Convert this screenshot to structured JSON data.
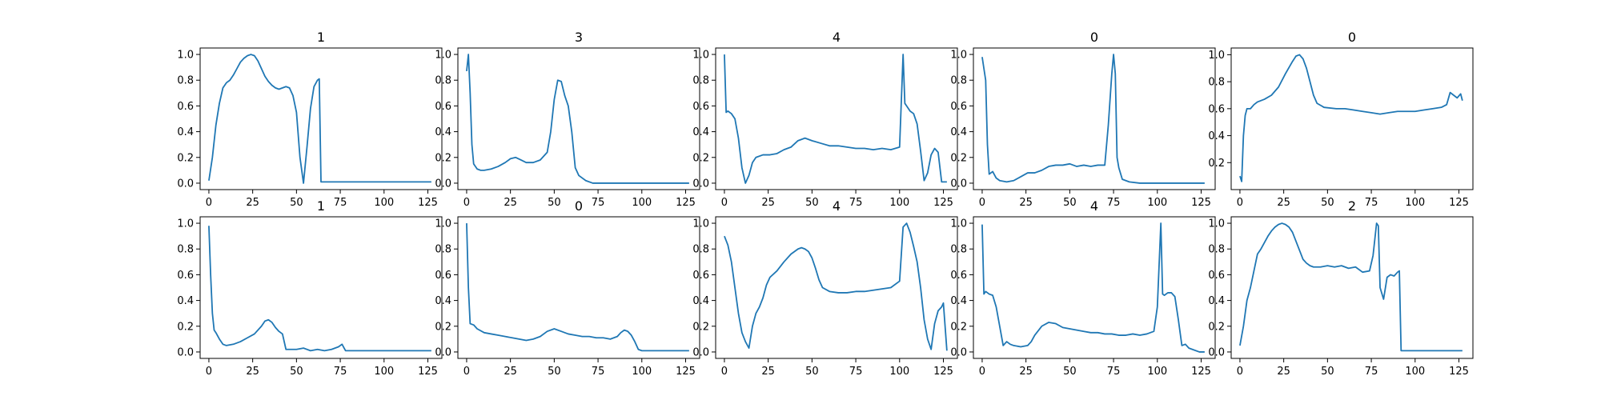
{
  "figure": {
    "line_color": "#1f77b4",
    "background": "#ffffff"
  },
  "chart_data": [
    {
      "type": "line",
      "title": "1",
      "xlabel": "",
      "ylabel": "",
      "xlim": [
        -5,
        133
      ],
      "ylim": [
        -0.05,
        1.05
      ],
      "xticks": [
        "0",
        "25",
        "50",
        "75",
        "100",
        "125"
      ],
      "yticks": [
        "0.0",
        "0.2",
        "0.4",
        "0.6",
        "0.8",
        "1.0"
      ],
      "series": [
        {
          "x": [
            0,
            2,
            4,
            6,
            8,
            10,
            12,
            14,
            16,
            18,
            20,
            22,
            24,
            26,
            28,
            30,
            32,
            34,
            36,
            38,
            40,
            42,
            44,
            46,
            48,
            50,
            52,
            54,
            56,
            58,
            60,
            62,
            63,
            64,
            127
          ],
          "y": [
            0.02,
            0.2,
            0.45,
            0.62,
            0.74,
            0.78,
            0.8,
            0.84,
            0.89,
            0.94,
            0.97,
            0.99,
            1.0,
            0.99,
            0.95,
            0.89,
            0.83,
            0.79,
            0.76,
            0.74,
            0.73,
            0.74,
            0.75,
            0.74,
            0.68,
            0.55,
            0.2,
            0.0,
            0.28,
            0.58,
            0.75,
            0.8,
            0.81,
            0.01,
            0.01
          ]
        }
      ]
    },
    {
      "type": "line",
      "title": "3",
      "xlabel": "",
      "ylabel": "",
      "xlim": [
        -5,
        133
      ],
      "ylim": [
        -0.05,
        1.05
      ],
      "xticks": [
        "0",
        "25",
        "50",
        "75",
        "100",
        "125"
      ],
      "yticks": [
        "0.0",
        "0.2",
        "0.4",
        "0.6",
        "0.8",
        "1.0"
      ],
      "series": [
        {
          "x": [
            0,
            1,
            2,
            3,
            4,
            6,
            8,
            10,
            14,
            18,
            22,
            25,
            28,
            31,
            34,
            38,
            42,
            46,
            48,
            50,
            52,
            54,
            56,
            58,
            60,
            62,
            64,
            68,
            72,
            80,
            127
          ],
          "y": [
            0.87,
            1.0,
            0.7,
            0.3,
            0.15,
            0.11,
            0.1,
            0.1,
            0.11,
            0.13,
            0.16,
            0.19,
            0.2,
            0.18,
            0.16,
            0.16,
            0.18,
            0.24,
            0.4,
            0.65,
            0.8,
            0.79,
            0.68,
            0.6,
            0.4,
            0.12,
            0.06,
            0.02,
            0.0,
            0.0,
            0.0
          ]
        }
      ]
    },
    {
      "type": "line",
      "title": "4",
      "xlabel": "",
      "ylabel": "",
      "xlim": [
        -5,
        133
      ],
      "ylim": [
        -0.05,
        1.05
      ],
      "xticks": [
        "0",
        "25",
        "50",
        "75",
        "100",
        "125"
      ],
      "yticks": [
        "0.0",
        "0.2",
        "0.4",
        "0.6",
        "0.8",
        "1.0"
      ],
      "series": [
        {
          "x": [
            0,
            1,
            2,
            4,
            6,
            8,
            10,
            12,
            14,
            16,
            18,
            22,
            26,
            30,
            34,
            38,
            42,
            46,
            50,
            55,
            60,
            65,
            70,
            75,
            80,
            85,
            90,
            95,
            100,
            102,
            103,
            104,
            106,
            108,
            110,
            112,
            114,
            116,
            118,
            120,
            122,
            124,
            127
          ],
          "y": [
            1.0,
            0.55,
            0.56,
            0.54,
            0.5,
            0.35,
            0.12,
            0.0,
            0.06,
            0.16,
            0.2,
            0.22,
            0.22,
            0.23,
            0.26,
            0.28,
            0.33,
            0.35,
            0.33,
            0.31,
            0.29,
            0.29,
            0.28,
            0.27,
            0.27,
            0.26,
            0.27,
            0.26,
            0.28,
            1.0,
            0.62,
            0.6,
            0.56,
            0.54,
            0.46,
            0.25,
            0.02,
            0.08,
            0.22,
            0.27,
            0.24,
            0.01,
            0.01
          ]
        }
      ]
    },
    {
      "type": "line",
      "title": "0",
      "xlabel": "",
      "ylabel": "",
      "xlim": [
        -5,
        133
      ],
      "ylim": [
        -0.05,
        1.05
      ],
      "xticks": [
        "0",
        "25",
        "50",
        "75",
        "100",
        "125"
      ],
      "yticks": [
        "0.0",
        "0.2",
        "0.4",
        "0.6",
        "0.8",
        "1.0"
      ],
      "series": [
        {
          "x": [
            0,
            2,
            3,
            4,
            6,
            8,
            10,
            14,
            18,
            22,
            26,
            30,
            34,
            38,
            42,
            46,
            50,
            54,
            58,
            62,
            66,
            70,
            72,
            74,
            75,
            76,
            77,
            78,
            80,
            84,
            90,
            127
          ],
          "y": [
            0.98,
            0.8,
            0.3,
            0.07,
            0.09,
            0.04,
            0.02,
            0.01,
            0.02,
            0.05,
            0.08,
            0.08,
            0.1,
            0.13,
            0.14,
            0.14,
            0.15,
            0.13,
            0.14,
            0.13,
            0.14,
            0.14,
            0.45,
            0.85,
            1.0,
            0.85,
            0.2,
            0.12,
            0.03,
            0.01,
            0.0,
            0.0
          ]
        }
      ]
    },
    {
      "type": "line",
      "title": "0",
      "xlabel": "",
      "ylabel": "",
      "xlim": [
        -5,
        133
      ],
      "ylim": [
        0.0,
        1.05
      ],
      "xticks": [
        "0",
        "25",
        "50",
        "75",
        "100",
        "125"
      ],
      "yticks": [
        "0.2",
        "0.4",
        "0.6",
        "0.8",
        "1.0"
      ],
      "series": [
        {
          "x": [
            0,
            1,
            2,
            3,
            4,
            6,
            8,
            10,
            14,
            18,
            22,
            26,
            30,
            32,
            34,
            36,
            38,
            40,
            42,
            44,
            48,
            55,
            60,
            65,
            70,
            75,
            80,
            85,
            90,
            95,
            100,
            105,
            110,
            115,
            118,
            120,
            122,
            124,
            126,
            127
          ],
          "y": [
            0.1,
            0.06,
            0.4,
            0.55,
            0.6,
            0.6,
            0.63,
            0.65,
            0.67,
            0.7,
            0.76,
            0.86,
            0.95,
            0.99,
            1.0,
            0.97,
            0.9,
            0.8,
            0.7,
            0.64,
            0.61,
            0.6,
            0.6,
            0.59,
            0.58,
            0.57,
            0.56,
            0.57,
            0.58,
            0.58,
            0.58,
            0.59,
            0.6,
            0.61,
            0.63,
            0.72,
            0.7,
            0.68,
            0.71,
            0.66
          ]
        }
      ]
    },
    {
      "type": "line",
      "title": "1",
      "xlabel": "",
      "ylabel": "",
      "xlim": [
        -5,
        133
      ],
      "ylim": [
        -0.05,
        1.05
      ],
      "xticks": [
        "0",
        "25",
        "50",
        "75",
        "100",
        "125"
      ],
      "yticks": [
        "0.0",
        "0.2",
        "0.4",
        "0.6",
        "0.8",
        "1.0"
      ],
      "series": [
        {
          "x": [
            0,
            1,
            2,
            3,
            4,
            6,
            8,
            10,
            14,
            18,
            22,
            26,
            30,
            32,
            34,
            36,
            38,
            40,
            42,
            44,
            46,
            50,
            54,
            58,
            62,
            66,
            70,
            74,
            76,
            78,
            90,
            127
          ],
          "y": [
            0.98,
            0.6,
            0.3,
            0.17,
            0.15,
            0.1,
            0.06,
            0.05,
            0.06,
            0.08,
            0.11,
            0.14,
            0.2,
            0.24,
            0.25,
            0.23,
            0.19,
            0.16,
            0.14,
            0.02,
            0.02,
            0.02,
            0.03,
            0.01,
            0.02,
            0.01,
            0.02,
            0.04,
            0.06,
            0.01,
            0.01,
            0.01
          ]
        }
      ]
    },
    {
      "type": "line",
      "title": "0",
      "xlabel": "",
      "ylabel": "",
      "xlim": [
        -5,
        133
      ],
      "ylim": [
        -0.05,
        1.05
      ],
      "xticks": [
        "0",
        "25",
        "50",
        "75",
        "100",
        "125"
      ],
      "yticks": [
        "0.0",
        "0.2",
        "0.4",
        "0.6",
        "0.8",
        "1.0"
      ],
      "series": [
        {
          "x": [
            0,
            1,
            2,
            4,
            6,
            10,
            14,
            18,
            22,
            26,
            30,
            34,
            38,
            42,
            46,
            50,
            54,
            58,
            62,
            66,
            70,
            74,
            78,
            82,
            86,
            88,
            90,
            92,
            94,
            96,
            98,
            100,
            127
          ],
          "y": [
            1.0,
            0.5,
            0.22,
            0.21,
            0.18,
            0.15,
            0.14,
            0.13,
            0.12,
            0.11,
            0.1,
            0.09,
            0.1,
            0.12,
            0.16,
            0.18,
            0.16,
            0.14,
            0.13,
            0.12,
            0.12,
            0.11,
            0.11,
            0.1,
            0.12,
            0.15,
            0.17,
            0.16,
            0.13,
            0.08,
            0.02,
            0.01,
            0.01
          ]
        }
      ]
    },
    {
      "type": "line",
      "title": "4",
      "xlabel": "",
      "ylabel": "",
      "xlim": [
        -5,
        133
      ],
      "ylim": [
        -0.05,
        1.05
      ],
      "xticks": [
        "0",
        "25",
        "50",
        "75",
        "100",
        "125"
      ],
      "yticks": [
        "0.0",
        "0.2",
        "0.4",
        "0.6",
        "0.8",
        "1.0"
      ],
      "series": [
        {
          "x": [
            0,
            2,
            4,
            6,
            8,
            10,
            12,
            14,
            16,
            18,
            20,
            22,
            24,
            26,
            30,
            34,
            38,
            42,
            44,
            46,
            48,
            50,
            52,
            54,
            56,
            60,
            65,
            70,
            75,
            80,
            85,
            90,
            95,
            100,
            102,
            104,
            106,
            108,
            110,
            112,
            114,
            116,
            118,
            120,
            122,
            124,
            125,
            127
          ],
          "y": [
            0.9,
            0.83,
            0.7,
            0.5,
            0.3,
            0.15,
            0.08,
            0.03,
            0.2,
            0.3,
            0.35,
            0.42,
            0.52,
            0.58,
            0.63,
            0.7,
            0.76,
            0.8,
            0.81,
            0.8,
            0.78,
            0.73,
            0.65,
            0.56,
            0.5,
            0.47,
            0.46,
            0.46,
            0.47,
            0.47,
            0.48,
            0.49,
            0.5,
            0.55,
            0.97,
            1.0,
            0.93,
            0.82,
            0.7,
            0.5,
            0.25,
            0.1,
            0.02,
            0.22,
            0.32,
            0.35,
            0.38,
            0.01
          ]
        }
      ]
    },
    {
      "type": "line",
      "title": "4",
      "xlabel": "",
      "ylabel": "",
      "xlim": [
        -5,
        133
      ],
      "ylim": [
        -0.05,
        1.05
      ],
      "xticks": [
        "0",
        "25",
        "50",
        "75",
        "100",
        "125"
      ],
      "yticks": [
        "0.0",
        "0.2",
        "0.4",
        "0.6",
        "0.8",
        "1.0"
      ],
      "series": [
        {
          "x": [
            0,
            1,
            2,
            4,
            6,
            8,
            10,
            12,
            14,
            16,
            18,
            22,
            26,
            28,
            30,
            34,
            38,
            42,
            46,
            50,
            54,
            58,
            62,
            66,
            70,
            74,
            78,
            82,
            86,
            90,
            94,
            98,
            100,
            102,
            103,
            104,
            106,
            108,
            110,
            112,
            114,
            116,
            118,
            120,
            124,
            127
          ],
          "y": [
            0.99,
            0.45,
            0.47,
            0.45,
            0.44,
            0.35,
            0.2,
            0.05,
            0.08,
            0.06,
            0.05,
            0.04,
            0.05,
            0.08,
            0.13,
            0.2,
            0.23,
            0.22,
            0.19,
            0.18,
            0.17,
            0.16,
            0.15,
            0.15,
            0.14,
            0.14,
            0.13,
            0.13,
            0.14,
            0.13,
            0.14,
            0.16,
            0.35,
            1.0,
            0.45,
            0.44,
            0.46,
            0.46,
            0.43,
            0.25,
            0.05,
            0.06,
            0.03,
            0.02,
            0.0,
            0.0
          ]
        }
      ]
    },
    {
      "type": "line",
      "title": "2",
      "xlabel": "",
      "ylabel": "",
      "xlim": [
        -5,
        133
      ],
      "ylim": [
        -0.05,
        1.05
      ],
      "xticks": [
        "0",
        "25",
        "50",
        "75",
        "100",
        "125"
      ],
      "yticks": [
        "0.0",
        "0.2",
        "0.4",
        "0.6",
        "0.8",
        "1.0"
      ],
      "series": [
        {
          "x": [
            0,
            2,
            4,
            6,
            8,
            10,
            12,
            14,
            16,
            18,
            20,
            22,
            24,
            26,
            28,
            30,
            32,
            34,
            36,
            38,
            40,
            42,
            46,
            50,
            54,
            58,
            62,
            66,
            70,
            74,
            76,
            78,
            79,
            80,
            82,
            84,
            86,
            88,
            90,
            91,
            92,
            127
          ],
          "y": [
            0.05,
            0.2,
            0.4,
            0.5,
            0.63,
            0.76,
            0.8,
            0.85,
            0.9,
            0.94,
            0.97,
            0.99,
            1.0,
            0.99,
            0.97,
            0.93,
            0.86,
            0.79,
            0.72,
            0.69,
            0.67,
            0.66,
            0.66,
            0.67,
            0.66,
            0.67,
            0.65,
            0.66,
            0.62,
            0.63,
            0.75,
            1.0,
            0.98,
            0.5,
            0.41,
            0.58,
            0.6,
            0.59,
            0.62,
            0.63,
            0.01,
            0.01
          ]
        }
      ]
    }
  ]
}
